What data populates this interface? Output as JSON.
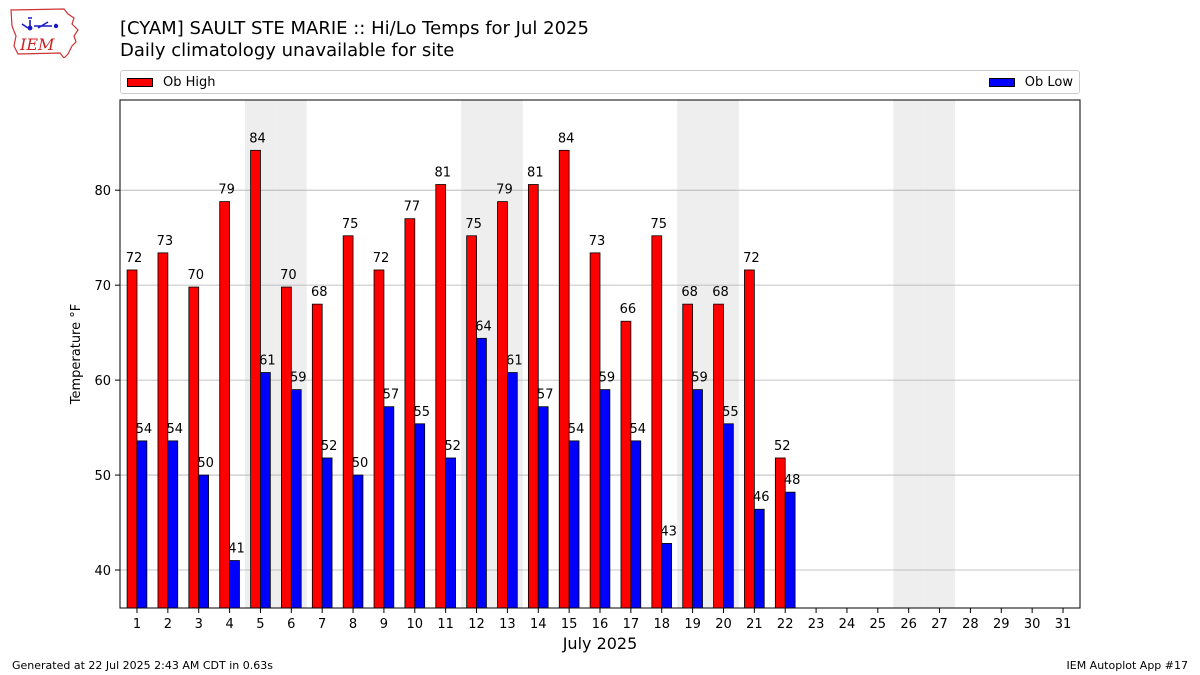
{
  "header": {
    "title_line1": "[CYAM] SAULT STE MARIE :: Hi/Lo Temps for Jul 2025",
    "title_line2": "Daily climatology unavailable for site",
    "logo_text": "IEM"
  },
  "footer": {
    "left": "Generated at 22 Jul 2025 2:43 AM CDT in 0.63s",
    "right": "IEM Autoplot App #17"
  },
  "colors": {
    "high": "#ff0000",
    "low": "#0000ff",
    "weekend_shade": "#eeeeee",
    "grid": "#b0b0b0"
  },
  "chart_data": {
    "type": "bar",
    "title": "[CYAM] SAULT STE MARIE :: Hi/Lo Temps for Jul 2025",
    "subtitle": "Daily climatology unavailable for site",
    "xlabel": "July 2025",
    "ylabel": "Temperature °F",
    "categories": [
      "1",
      "2",
      "3",
      "4",
      "5",
      "6",
      "7",
      "8",
      "9",
      "10",
      "11",
      "12",
      "13",
      "14",
      "15",
      "16",
      "17",
      "18",
      "19",
      "20",
      "21",
      "22",
      "23",
      "24",
      "25",
      "26",
      "27",
      "28",
      "29",
      "30",
      "31"
    ],
    "series": [
      {
        "name": "Ob High",
        "color": "#ff0000",
        "values": [
          71.6,
          73.4,
          69.8,
          78.8,
          84.2,
          69.8,
          68.0,
          75.2,
          71.6,
          77.0,
          80.6,
          75.2,
          78.8,
          80.6,
          84.2,
          73.4,
          66.2,
          75.2,
          68.0,
          68.0,
          71.6,
          51.8,
          null,
          null,
          null,
          null,
          null,
          null,
          null,
          null,
          null
        ],
        "labels": [
          "72",
          "73",
          "70",
          "79",
          "84",
          "70",
          "68",
          "75",
          "72",
          "77",
          "81",
          "75",
          "79",
          "81",
          "84",
          "73",
          "66",
          "75",
          "68",
          "68",
          "72",
          "52",
          null,
          null,
          null,
          null,
          null,
          null,
          null,
          null,
          null
        ]
      },
      {
        "name": "Ob Low",
        "color": "#0000ff",
        "values": [
          53.6,
          53.6,
          50.0,
          41.0,
          60.8,
          59.0,
          51.8,
          50.0,
          57.2,
          55.4,
          51.8,
          64.4,
          60.8,
          57.2,
          53.6,
          59.0,
          53.6,
          42.8,
          59.0,
          55.4,
          46.4,
          48.2,
          null,
          null,
          null,
          null,
          null,
          null,
          null,
          null,
          null
        ],
        "labels": [
          "54",
          "54",
          "50",
          "41",
          "61",
          "59",
          "52",
          "50",
          "57",
          "55",
          "52",
          "64",
          "61",
          "57",
          "54",
          "59",
          "54",
          "43",
          "59",
          "55",
          "46",
          "48",
          null,
          null,
          null,
          null,
          null,
          null,
          null,
          null,
          null
        ]
      }
    ],
    "weekend_shaded_days": [
      5,
      6,
      12,
      13,
      19,
      20,
      26,
      27
    ],
    "ylim": [
      36,
      89.5
    ],
    "yticks": [
      40,
      50,
      60,
      70,
      80
    ],
    "grid": "y",
    "legend": "top"
  }
}
